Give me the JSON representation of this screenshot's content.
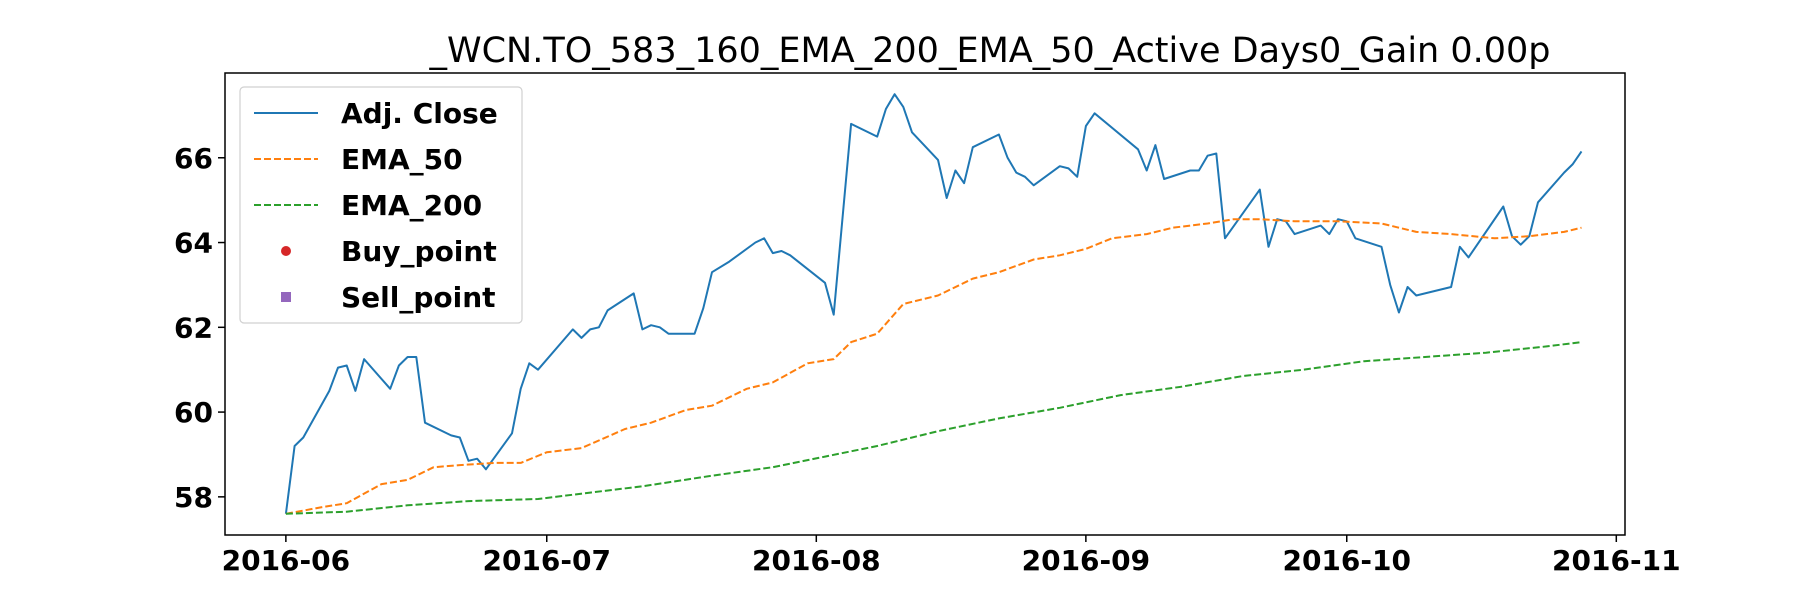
{
  "chart_data": {
    "type": "line",
    "title": "_WCN.TO_583_160_EMA_200_EMA_50_Active Days0_Gain   0.00p",
    "xlabel": "",
    "ylabel": "",
    "x_range": [
      "2016-05-25",
      "2016-11-02"
    ],
    "ylim": [
      57.1,
      68.0
    ],
    "x_ticks": [
      "2016-06",
      "2016-07",
      "2016-08",
      "2016-09",
      "2016-10",
      "2016-11"
    ],
    "y_ticks": [
      58,
      60,
      62,
      64,
      66
    ],
    "grid": false,
    "legend_position": "upper left",
    "series": [
      {
        "name": "Adj. Close",
        "style": "solid",
        "color": "#1f77b4",
        "points": [
          [
            "2016-06-01",
            57.6
          ],
          [
            "2016-06-02",
            59.2
          ],
          [
            "2016-06-03",
            59.4
          ],
          [
            "2016-06-06",
            60.5
          ],
          [
            "2016-06-07",
            61.05
          ],
          [
            "2016-06-08",
            61.1
          ],
          [
            "2016-06-09",
            60.5
          ],
          [
            "2016-06-10",
            61.25
          ],
          [
            "2016-06-13",
            60.55
          ],
          [
            "2016-06-14",
            61.1
          ],
          [
            "2016-06-15",
            61.3
          ],
          [
            "2016-06-16",
            61.3
          ],
          [
            "2016-06-17",
            59.75
          ],
          [
            "2016-06-20",
            59.45
          ],
          [
            "2016-06-21",
            59.4
          ],
          [
            "2016-06-22",
            58.85
          ],
          [
            "2016-06-23",
            58.9
          ],
          [
            "2016-06-24",
            58.65
          ],
          [
            "2016-06-27",
            59.5
          ],
          [
            "2016-06-28",
            60.55
          ],
          [
            "2016-06-29",
            61.15
          ],
          [
            "2016-06-30",
            61.0
          ],
          [
            "2016-07-04",
            61.95
          ],
          [
            "2016-07-05",
            61.75
          ],
          [
            "2016-07-06",
            61.95
          ],
          [
            "2016-07-07",
            62.0
          ],
          [
            "2016-07-08",
            62.4
          ],
          [
            "2016-07-11",
            62.8
          ],
          [
            "2016-07-12",
            61.95
          ],
          [
            "2016-07-13",
            62.05
          ],
          [
            "2016-07-14",
            62.0
          ],
          [
            "2016-07-15",
            61.85
          ],
          [
            "2016-07-18",
            61.85
          ],
          [
            "2016-07-19",
            62.45
          ],
          [
            "2016-07-20",
            63.3
          ],
          [
            "2016-07-22",
            63.55
          ],
          [
            "2016-07-25",
            64.0
          ],
          [
            "2016-07-26",
            64.1
          ],
          [
            "2016-07-27",
            63.75
          ],
          [
            "2016-07-28",
            63.8
          ],
          [
            "2016-07-29",
            63.7
          ],
          [
            "2016-08-02",
            63.05
          ],
          [
            "2016-08-03",
            62.3
          ],
          [
            "2016-08-05",
            66.8
          ],
          [
            "2016-08-08",
            66.5
          ],
          [
            "2016-08-09",
            67.15
          ],
          [
            "2016-08-10",
            67.5
          ],
          [
            "2016-08-11",
            67.2
          ],
          [
            "2016-08-12",
            66.6
          ],
          [
            "2016-08-15",
            65.95
          ],
          [
            "2016-08-16",
            65.05
          ],
          [
            "2016-08-17",
            65.7
          ],
          [
            "2016-08-18",
            65.4
          ],
          [
            "2016-08-19",
            66.25
          ],
          [
            "2016-08-22",
            66.55
          ],
          [
            "2016-08-23",
            66.0
          ],
          [
            "2016-08-24",
            65.65
          ],
          [
            "2016-08-25",
            65.55
          ],
          [
            "2016-08-26",
            65.35
          ],
          [
            "2016-08-29",
            65.8
          ],
          [
            "2016-08-30",
            65.75
          ],
          [
            "2016-08-31",
            65.55
          ],
          [
            "2016-09-01",
            66.75
          ],
          [
            "2016-09-02",
            67.05
          ],
          [
            "2016-09-07",
            66.2
          ],
          [
            "2016-09-08",
            65.7
          ],
          [
            "2016-09-09",
            66.3
          ],
          [
            "2016-09-10",
            65.5
          ],
          [
            "2016-09-13",
            65.7
          ],
          [
            "2016-09-14",
            65.7
          ],
          [
            "2016-09-15",
            66.05
          ],
          [
            "2016-09-16",
            66.1
          ],
          [
            "2016-09-17",
            64.1
          ],
          [
            "2016-09-21",
            65.25
          ],
          [
            "2016-09-22",
            63.9
          ],
          [
            "2016-09-23",
            64.55
          ],
          [
            "2016-09-24",
            64.5
          ],
          [
            "2016-09-25",
            64.2
          ],
          [
            "2016-09-28",
            64.4
          ],
          [
            "2016-09-29",
            64.2
          ],
          [
            "2016-09-30",
            64.55
          ],
          [
            "2016-10-01",
            64.5
          ],
          [
            "2016-10-02",
            64.1
          ],
          [
            "2016-10-05",
            63.9
          ],
          [
            "2016-10-06",
            63.0
          ],
          [
            "2016-10-07",
            62.35
          ],
          [
            "2016-10-08",
            62.95
          ],
          [
            "2016-10-09",
            62.75
          ],
          [
            "2016-10-13",
            62.95
          ],
          [
            "2016-10-14",
            63.9
          ],
          [
            "2016-10-15",
            63.65
          ],
          [
            "2016-10-19",
            64.85
          ],
          [
            "2016-10-20",
            64.15
          ],
          [
            "2016-10-21",
            63.95
          ],
          [
            "2016-10-22",
            64.15
          ],
          [
            "2016-10-23",
            64.95
          ],
          [
            "2016-10-26",
            65.65
          ],
          [
            "2016-10-27",
            65.85
          ],
          [
            "2016-10-28",
            66.15
          ]
        ]
      },
      {
        "name": "EMA_50",
        "style": "dashed",
        "color": "#ff7f0e",
        "points": [
          [
            "2016-06-01",
            57.6
          ],
          [
            "2016-06-05",
            57.75
          ],
          [
            "2016-06-08",
            57.85
          ],
          [
            "2016-06-12",
            58.3
          ],
          [
            "2016-06-15",
            58.4
          ],
          [
            "2016-06-18",
            58.7
          ],
          [
            "2016-06-21",
            58.75
          ],
          [
            "2016-06-25",
            58.8
          ],
          [
            "2016-06-28",
            58.8
          ],
          [
            "2016-07-01",
            59.05
          ],
          [
            "2016-07-05",
            59.15
          ],
          [
            "2016-07-10",
            59.6
          ],
          [
            "2016-07-13",
            59.75
          ],
          [
            "2016-07-17",
            60.05
          ],
          [
            "2016-07-20",
            60.15
          ],
          [
            "2016-07-24",
            60.55
          ],
          [
            "2016-07-27",
            60.7
          ],
          [
            "2016-07-31",
            61.15
          ],
          [
            "2016-08-03",
            61.25
          ],
          [
            "2016-08-05",
            61.65
          ],
          [
            "2016-08-08",
            61.85
          ],
          [
            "2016-08-11",
            62.55
          ],
          [
            "2016-08-15",
            62.75
          ],
          [
            "2016-08-19",
            63.15
          ],
          [
            "2016-08-22",
            63.3
          ],
          [
            "2016-08-26",
            63.6
          ],
          [
            "2016-08-29",
            63.7
          ],
          [
            "2016-09-01",
            63.85
          ],
          [
            "2016-09-04",
            64.1
          ],
          [
            "2016-09-08",
            64.2
          ],
          [
            "2016-09-11",
            64.35
          ],
          [
            "2016-09-15",
            64.45
          ],
          [
            "2016-09-18",
            64.55
          ],
          [
            "2016-09-21",
            64.55
          ],
          [
            "2016-09-25",
            64.5
          ],
          [
            "2016-09-30",
            64.5
          ],
          [
            "2016-10-05",
            64.45
          ],
          [
            "2016-10-09",
            64.25
          ],
          [
            "2016-10-13",
            64.2
          ],
          [
            "2016-10-18",
            64.1
          ],
          [
            "2016-10-22",
            64.15
          ],
          [
            "2016-10-26",
            64.25
          ],
          [
            "2016-10-28",
            64.35
          ]
        ]
      },
      {
        "name": "EMA_200",
        "style": "dashed",
        "color": "#2ca02c",
        "points": [
          [
            "2016-06-01",
            57.6
          ],
          [
            "2016-06-08",
            57.65
          ],
          [
            "2016-06-15",
            57.8
          ],
          [
            "2016-06-22",
            57.9
          ],
          [
            "2016-06-30",
            57.95
          ],
          [
            "2016-07-06",
            58.1
          ],
          [
            "2016-07-12",
            58.25
          ],
          [
            "2016-07-20",
            58.5
          ],
          [
            "2016-07-27",
            58.7
          ],
          [
            "2016-08-02",
            58.95
          ],
          [
            "2016-08-08",
            59.2
          ],
          [
            "2016-08-15",
            59.55
          ],
          [
            "2016-08-22",
            59.85
          ],
          [
            "2016-08-29",
            60.1
          ],
          [
            "2016-09-05",
            60.4
          ],
          [
            "2016-09-12",
            60.6
          ],
          [
            "2016-09-19",
            60.85
          ],
          [
            "2016-09-26",
            61.0
          ],
          [
            "2016-10-03",
            61.2
          ],
          [
            "2016-10-10",
            61.3
          ],
          [
            "2016-10-17",
            61.4
          ],
          [
            "2016-10-24",
            61.55
          ],
          [
            "2016-10-28",
            61.65
          ]
        ]
      }
    ],
    "buy_points": [],
    "sell_points": [],
    "legend": [
      {
        "label": "Adj. Close",
        "marker": "solid-line",
        "color": "#1f77b4"
      },
      {
        "label": "EMA_50",
        "marker": "dashed-line",
        "color": "#ff7f0e"
      },
      {
        "label": "EMA_200",
        "marker": "dashed-line",
        "color": "#2ca02c"
      },
      {
        "label": "Buy_point",
        "marker": "circle",
        "color": "#d62728"
      },
      {
        "label": "Sell_point",
        "marker": "square",
        "color": "#9467bd"
      }
    ]
  }
}
